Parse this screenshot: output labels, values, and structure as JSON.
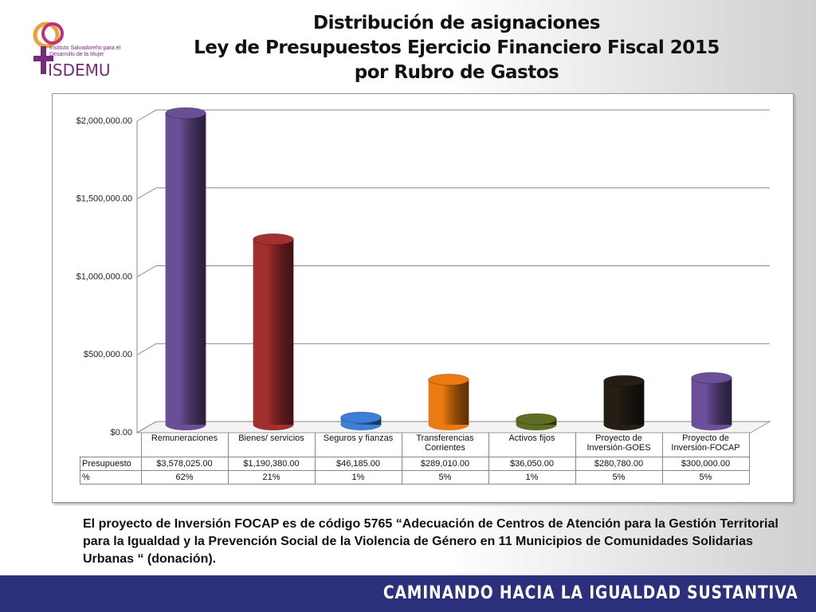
{
  "logo": {
    "text": "Instituto Salvadoreño para el Desarrollo de la Mujer",
    "name": "ISDEMU"
  },
  "chart_data": {
    "type": "bar3d",
    "title": [
      "Distribución de asignaciones",
      "Ley de Presupuestos Ejercicio Financiero Fiscal 2015",
      "por Rubro de Gastos"
    ],
    "categories": [
      "Remuneraciones",
      "Bienes/ servicios",
      "Seguros y fianzas",
      "Transferencias Corrientes",
      "Activos fijos",
      "Proyecto de Inversión-GOES",
      "Proyecto de Inversión-FOCAP"
    ],
    "series": [
      {
        "name": "Presupuesto",
        "values": [
          3578025,
          1190380,
          46185,
          289010,
          36050,
          280780,
          300000
        ],
        "value_labels": [
          "$3,578,025.00",
          "$1,190,380.00",
          "$46,185.00",
          "$289,010.00",
          "$36,050.00",
          "$280,780.00",
          "$300,000.00"
        ]
      },
      {
        "name": "%",
        "values": [
          62,
          21,
          1,
          5,
          1,
          5,
          5
        ],
        "value_labels": [
          "62%",
          "21%",
          "1%",
          "5%",
          "1%",
          "5%",
          "5%"
        ]
      }
    ],
    "colors": [
      "#6b4f96",
      "#a3302f",
      "#3d7fd6",
      "#ec7a12",
      "#5d6d22",
      "#241e14",
      "#6b4f9a"
    ],
    "ylim": [
      0,
      2000000
    ],
    "yticks": [
      {
        "value": 0,
        "label": "$0.00"
      },
      {
        "value": 500000,
        "label": "$500,000.00"
      },
      {
        "value": 1000000,
        "label": "$1,000,000.00"
      },
      {
        "value": 1500000,
        "label": "$1,500,000.00"
      },
      {
        "value": 2000000,
        "label": "$2,000,000.00"
      }
    ],
    "grid": true
  },
  "note": "El proyecto de Inversión  FOCAP es de código 5765  “Adecuación de Centros de Atención para la Gestión Territorial para la Igualdad y la Prevención Social de la Violencia de Género en 11 Municipios de Comunidades Solidarias Urbanas “ (donación).",
  "footer": "CAMINANDO HACIA LA IGUALDAD SUSTANTIVA"
}
